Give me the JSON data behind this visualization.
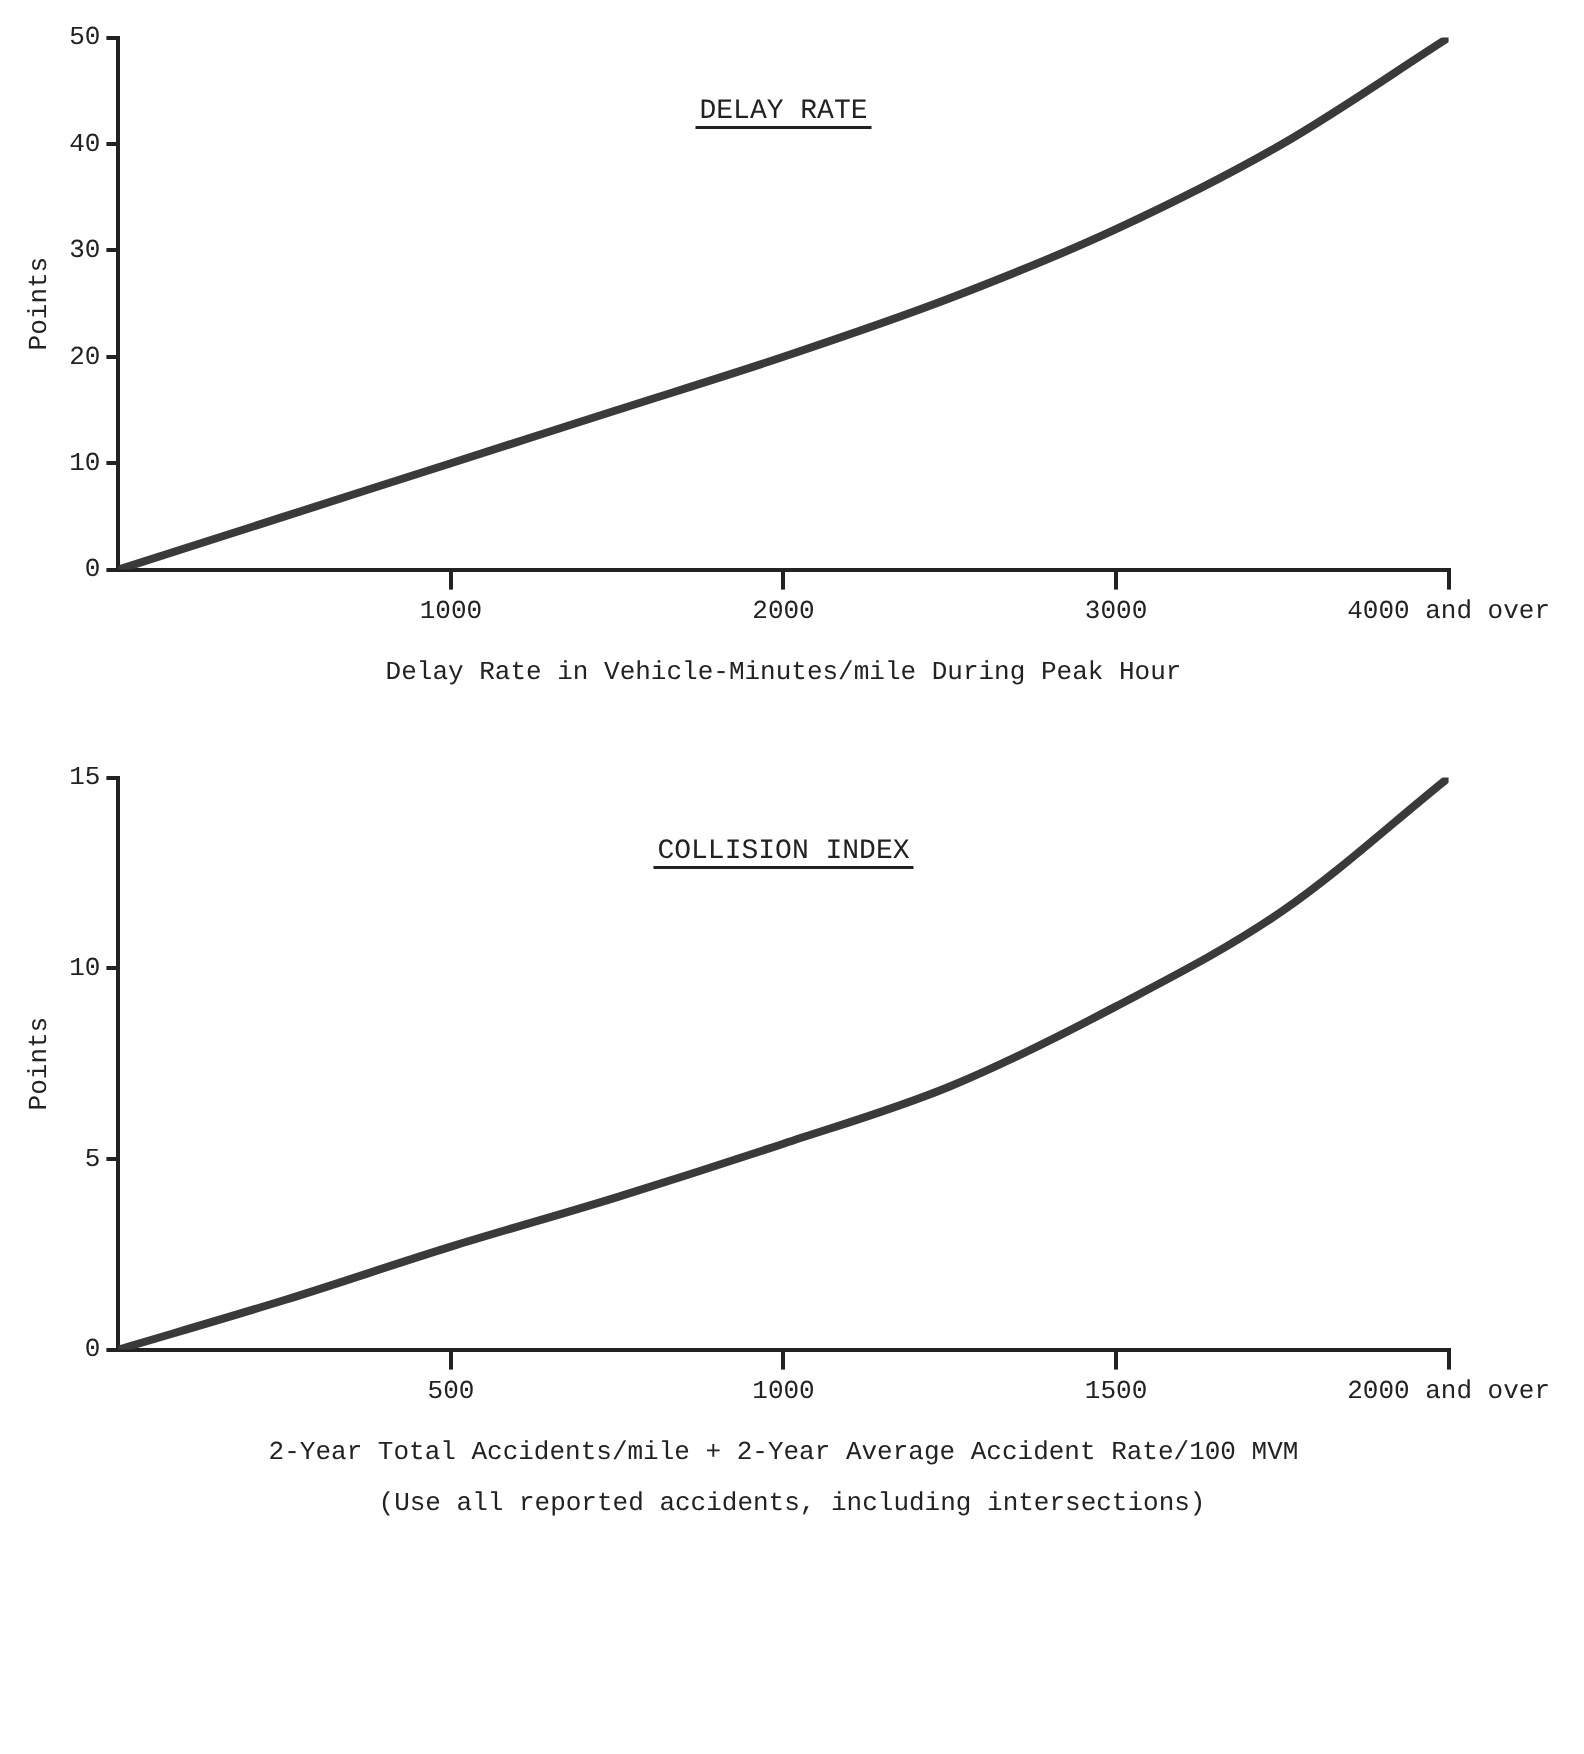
{
  "chart_data": [
    {
      "type": "line",
      "title": "DELAY RATE",
      "xlabel": "Delay Rate in Vehicle-Minutes/mile During Peak Hour",
      "ylabel": "Points",
      "x": [
        0,
        500,
        1000,
        1500,
        2000,
        2500,
        3000,
        3500,
        4000
      ],
      "series": [
        {
          "color": "#3a3a3a",
          "values": [
            0,
            5,
            10,
            15,
            20,
            25.5,
            32,
            40,
            50
          ]
        }
      ],
      "xlim": [
        0,
        4000
      ],
      "xticks": [
        {
          "value": 1000,
          "label": "1000"
        },
        {
          "value": 2000,
          "label": "2000"
        },
        {
          "value": 3000,
          "label": "3000"
        },
        {
          "value": 4000,
          "label": "4000 and over"
        }
      ],
      "ylim": [
        0,
        50
      ],
      "yticks": [
        0,
        10,
        20,
        30,
        40,
        50
      ],
      "grid": false,
      "legend": false,
      "marker": "none"
    },
    {
      "type": "line",
      "title": "COLLISION INDEX",
      "xlabel": "2-Year Total Accidents/mile + 2-Year Average Accident Rate/100 MVM",
      "ylabel": "Points",
      "annotations": [
        "(Use all reported accidents, including intersections)"
      ],
      "x": [
        0,
        250,
        500,
        750,
        1000,
        1250,
        1500,
        1750,
        2000
      ],
      "series": [
        {
          "color": "#3a3a3a",
          "values": [
            0,
            1.3,
            2.7,
            4,
            5.4,
            6.9,
            9,
            11.5,
            15
          ]
        }
      ],
      "xlim": [
        0,
        2000
      ],
      "xticks": [
        {
          "value": 500,
          "label": "500"
        },
        {
          "value": 1000,
          "label": "1000"
        },
        {
          "value": 1500,
          "label": "1500"
        },
        {
          "value": 2000,
          "label": "2000 and over"
        }
      ],
      "ylim": [
        0,
        15
      ],
      "yticks": [
        0,
        5,
        10,
        15
      ],
      "grid": false,
      "legend": false,
      "marker": "none"
    }
  ]
}
